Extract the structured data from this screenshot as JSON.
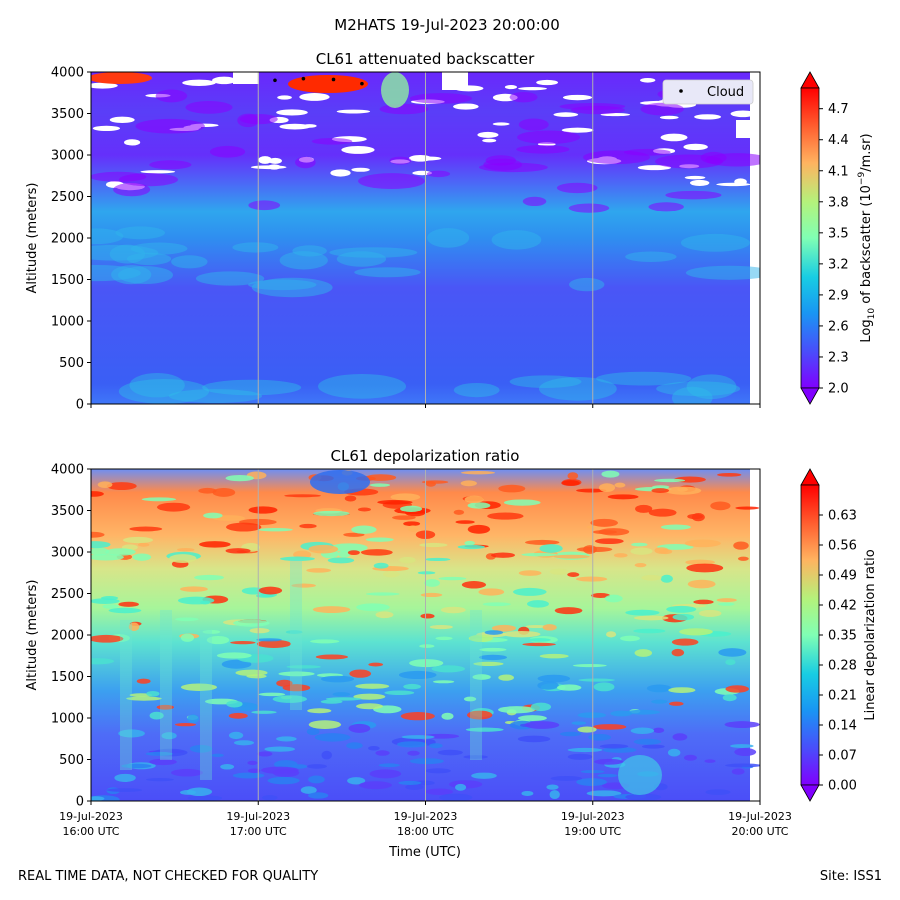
{
  "suptitle": "M2HATS 19-Jul-2023 20:00:00",
  "footer": {
    "left": "REAL TIME DATA, NOT CHECKED FOR QUALITY",
    "right": "Site: ISS1"
  },
  "colors": {
    "cloud_marker": "#000000",
    "gridline": "#b0b0b0",
    "legend_bg": "#e8e8f8"
  },
  "chart_data": [
    {
      "type": "heatmap",
      "title": "CL61 attenuated backscatter",
      "ylabel": "Altitude (meters)",
      "ylim": [
        0,
        4000
      ],
      "yticks": [
        "0",
        "500",
        "1000",
        "1500",
        "2000",
        "2500",
        "3000",
        "3500",
        "4000"
      ],
      "xlim_hours": [
        16,
        20
      ],
      "xlabel": "",
      "colorbar": {
        "label_prefix": "Log",
        "label_sub": "10",
        "label_mid": " of backscatter (10",
        "label_sup": "−9",
        "label_suffix": "/m.sr)",
        "range": [
          2.0,
          4.9
        ],
        "ticks": [
          "2.0",
          "2.3",
          "2.6",
          "2.9",
          "3.2",
          "3.5",
          "3.8",
          "4.1",
          "4.4",
          "4.7"
        ],
        "extend": "both"
      },
      "legend": {
        "label": "Cloud",
        "location": "upper right"
      },
      "cloud_points": [
        {
          "hour": 17.1,
          "altitude": 3900
        },
        {
          "hour": 17.27,
          "altitude": 3920
        },
        {
          "hour": 17.45,
          "altitude": 3910
        },
        {
          "hour": 17.62,
          "altitude": 3860
        }
      ]
    },
    {
      "type": "heatmap",
      "title": "CL61 depolarization ratio",
      "ylabel": "Altitude (meters)",
      "ylim": [
        0,
        4000
      ],
      "yticks": [
        "0",
        "500",
        "1000",
        "1500",
        "2000",
        "2500",
        "3000",
        "3500",
        "4000"
      ],
      "xlim_hours": [
        16,
        20
      ],
      "xlabel": "Time (UTC)",
      "xticks": [
        {
          "date": "19-Jul-2023",
          "time": "16:00 UTC"
        },
        {
          "date": "19-Jul-2023",
          "time": "17:00 UTC"
        },
        {
          "date": "19-Jul-2023",
          "time": "18:00 UTC"
        },
        {
          "date": "19-Jul-2023",
          "time": "19:00 UTC"
        },
        {
          "date": "19-Jul-2023",
          "time": "20:00 UTC"
        }
      ],
      "colorbar": {
        "label": "Linear depolarization ratio",
        "range": [
          0.0,
          0.7
        ],
        "ticks": [
          "0.00",
          "0.07",
          "0.14",
          "0.21",
          "0.28",
          "0.35",
          "0.42",
          "0.49",
          "0.56",
          "0.63"
        ],
        "extend": "both"
      }
    }
  ]
}
